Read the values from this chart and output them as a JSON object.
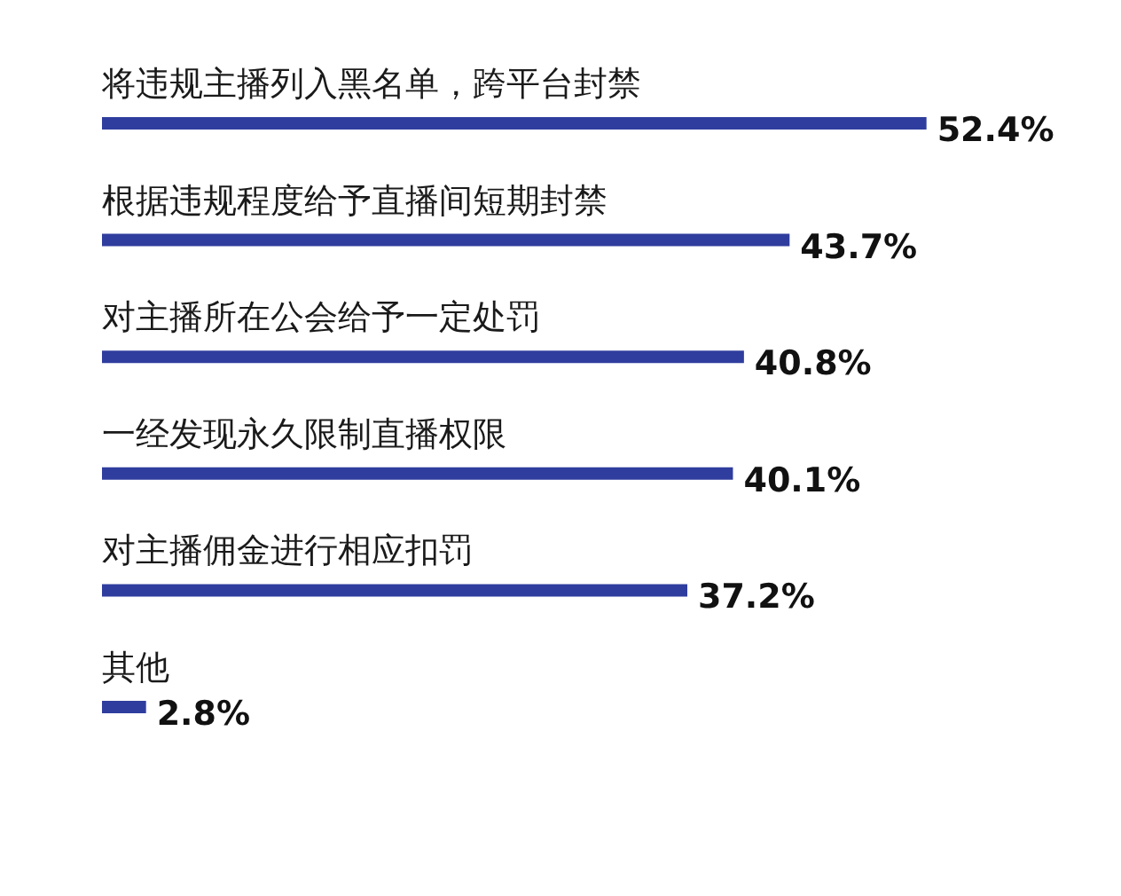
{
  "chart_data": {
    "type": "bar",
    "orientation": "horizontal",
    "categories": [
      "将违规主播列入黑名单，跨平台封禁",
      "根据违规程度给予直播间短期封禁",
      "对主播所在公会给予一定处罚",
      "一经发现永久限制直播权限",
      "对主播佣金进行相应扣罚",
      "其他"
    ],
    "values": [
      52.4,
      43.7,
      40.8,
      40.1,
      37.2,
      2.8
    ],
    "value_labels": [
      "52.4%",
      "43.7%",
      "40.8%",
      "40.1%",
      "37.2%",
      "2.8%"
    ],
    "color": "#2f3d9e"
  }
}
